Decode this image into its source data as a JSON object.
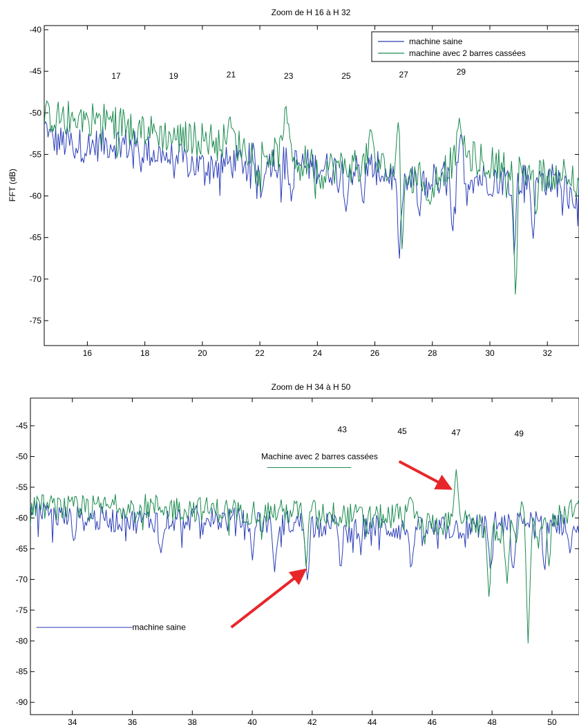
{
  "chart_data": [
    {
      "type": "line",
      "title": "Zoom de H 16 à H 32",
      "ylabel": "FFT (dB)",
      "xlabel": "",
      "xlim": [
        14.5,
        33.1
      ],
      "ylim": [
        -78,
        -39.5
      ],
      "xticks": [
        16,
        18,
        20,
        22,
        24,
        26,
        28,
        30,
        32
      ],
      "yticks": [
        -40,
        -45,
        -50,
        -55,
        -60,
        -65,
        -70,
        -75
      ],
      "legend": {
        "placement": "top-right",
        "entries": [
          "machine saine",
          "machine avec 2 barres cassées"
        ]
      },
      "harmonic_labels": [
        {
          "label": "17",
          "x": 17.0,
          "y": -45.5
        },
        {
          "label": "19",
          "x": 19.0,
          "y": -45.5
        },
        {
          "label": "21",
          "x": 21.0,
          "y": -45.3
        },
        {
          "label": "23",
          "x": 23.0,
          "y": -45.5
        },
        {
          "label": "25",
          "x": 25.0,
          "y": -45.5
        },
        {
          "label": "27",
          "x": 27.0,
          "y": -45.3
        },
        {
          "label": "29",
          "x": 29.0,
          "y": -45.0
        }
      ],
      "series": [
        {
          "name": "machine saine",
          "color": "#2b3eb8",
          "base": [
            [
              14.5,
              -53.0
            ],
            [
              15.0,
              -53.5
            ],
            [
              16.0,
              -54.0
            ],
            [
              17.0,
              -53.5
            ],
            [
              18.0,
              -54.5
            ],
            [
              19.0,
              -55.5
            ],
            [
              20.0,
              -56.5
            ],
            [
              21.0,
              -56.0
            ],
            [
              22.0,
              -55.5
            ],
            [
              23.0,
              -56.0
            ],
            [
              24.0,
              -56.5
            ],
            [
              25.0,
              -57.0
            ],
            [
              26.0,
              -56.5
            ],
            [
              27.0,
              -58.5
            ],
            [
              28.0,
              -58.0
            ],
            [
              29.0,
              -57.5
            ],
            [
              30.0,
              -58.0
            ],
            [
              31.0,
              -58.0
            ],
            [
              32.0,
              -58.0
            ],
            [
              33.1,
              -58.5
            ]
          ],
          "peaks": [
            [
              14.55,
              -51.0
            ],
            [
              29.0,
              -52.0
            ]
          ],
          "dips": [
            [
              22.05,
              -60.5
            ],
            [
              23.1,
              -61.0
            ],
            [
              25.0,
              -62.0
            ],
            [
              25.6,
              -61.5
            ],
            [
              26.85,
              -68.0
            ],
            [
              27.55,
              -63.0
            ],
            [
              28.7,
              -65.5
            ],
            [
              30.85,
              -67.5
            ],
            [
              31.5,
              -65.5
            ],
            [
              32.9,
              -61.5
            ]
          ]
        },
        {
          "name": "machine avec 2 barres cassées",
          "color": "#1a8a4e",
          "base": [
            [
              14.5,
              -50.5
            ],
            [
              15.0,
              -50.5
            ],
            [
              16.0,
              -50.5
            ],
            [
              17.0,
              -51.0
            ],
            [
              18.0,
              -52.0
            ],
            [
              19.0,
              -53.0
            ],
            [
              20.0,
              -53.0
            ],
            [
              21.0,
              -53.5
            ],
            [
              22.0,
              -55.0
            ],
            [
              23.0,
              -55.0
            ],
            [
              24.0,
              -56.5
            ],
            [
              25.0,
              -56.5
            ],
            [
              26.0,
              -56.0
            ],
            [
              27.0,
              -58.0
            ],
            [
              28.0,
              -58.0
            ],
            [
              29.0,
              -55.0
            ],
            [
              30.0,
              -56.0
            ],
            [
              31.0,
              -57.0
            ],
            [
              32.0,
              -57.5
            ],
            [
              33.1,
              -56.5
            ]
          ],
          "peaks": [
            [
              22.9,
              -48.3
            ],
            [
              26.85,
              -48.3
            ],
            [
              28.95,
              -50.3
            ],
            [
              25.85,
              -51.5
            ],
            [
              20.95,
              -50.3
            ]
          ],
          "dips": [
            [
              24.1,
              -59.5
            ],
            [
              26.95,
              -67.0
            ],
            [
              27.9,
              -61.5
            ],
            [
              30.9,
              -74.0
            ],
            [
              31.6,
              -62.5
            ],
            [
              33.0,
              -60.5
            ]
          ]
        }
      ]
    },
    {
      "type": "line",
      "title": "Zoom de H 34 à H 50",
      "ylabel": "",
      "xlabel": "",
      "xlim": [
        32.6,
        50.9
      ],
      "ylim": [
        -92,
        -40.5
      ],
      "xticks": [
        34,
        36,
        38,
        40,
        42,
        44,
        46,
        48,
        50
      ],
      "yticks": [
        -45,
        -50,
        -55,
        -60,
        -65,
        -70,
        -75,
        -80,
        -85,
        -90
      ],
      "harmonic_labels": [
        {
          "label": "43",
          "x": 43.0,
          "y": -45.5
        },
        {
          "label": "45",
          "x": 45.0,
          "y": -45.8
        },
        {
          "label": "47",
          "x": 46.8,
          "y": -46.0
        },
        {
          "label": "49",
          "x": 48.9,
          "y": -46.2
        }
      ],
      "annotations": [
        {
          "text": "Machine avec 2 barres cassées",
          "series": "green",
          "line_x": [
            40.5,
            43.3
          ],
          "y": -51.8,
          "label_x": 40.3,
          "label_y": -50.0,
          "arrow_from": [
            44.9,
            -50.8
          ],
          "arrow_to": [
            46.6,
            -55.2
          ]
        },
        {
          "text": "machine saine",
          "series": "blue",
          "line_x": [
            32.8,
            36.0
          ],
          "y": -77.8,
          "label_x": 36.0,
          "label_y": -77.8,
          "arrow_from": [
            39.3,
            -77.8
          ],
          "arrow_to": [
            41.75,
            -68.5
          ]
        }
      ],
      "series": [
        {
          "name": "machine saine",
          "color": "#2b3eb8",
          "base": [
            [
              32.6,
              -59.0
            ],
            [
              34.0,
              -60.0
            ],
            [
              36.0,
              -60.5
            ],
            [
              38.0,
              -60.0
            ],
            [
              40.0,
              -60.5
            ],
            [
              42.0,
              -61.0
            ],
            [
              44.0,
              -61.5
            ],
            [
              46.0,
              -62.0
            ],
            [
              48.0,
              -61.0
            ],
            [
              50.0,
              -60.5
            ],
            [
              50.9,
              -61.5
            ]
          ],
          "peaks": [],
          "dips": [
            [
              34.05,
              -64.0
            ],
            [
              36.95,
              -66.0
            ],
            [
              40.0,
              -67.0
            ],
            [
              40.75,
              -69.0
            ],
            [
              41.85,
              -71.0
            ],
            [
              42.95,
              -69.5
            ],
            [
              45.3,
              -69.0
            ],
            [
              47.95,
              -69.0
            ],
            [
              48.7,
              -70.0
            ],
            [
              49.75,
              -70.0
            ],
            [
              50.6,
              -66.0
            ]
          ]
        },
        {
          "name": "machine avec 2 barres cassées",
          "color": "#1a8a4e",
          "base": [
            [
              32.6,
              -58.0
            ],
            [
              34.0,
              -58.5
            ],
            [
              36.0,
              -58.0
            ],
            [
              38.0,
              -58.5
            ],
            [
              40.0,
              -59.0
            ],
            [
              42.0,
              -59.0
            ],
            [
              44.0,
              -60.0
            ],
            [
              45.0,
              -59.5
            ],
            [
              46.0,
              -61.0
            ],
            [
              47.0,
              -60.5
            ],
            [
              48.0,
              -62.0
            ],
            [
              49.0,
              -62.5
            ],
            [
              50.0,
              -60.0
            ],
            [
              50.9,
              -58.0
            ]
          ],
          "peaks": [
            [
              46.8,
              -51.8
            ],
            [
              49.0,
              -56.5
            ],
            [
              50.85,
              -57.5
            ],
            [
              45.3,
              -56.0
            ]
          ],
          "dips": [
            [
              41.8,
              -68.5
            ],
            [
              47.9,
              -73.5
            ],
            [
              48.5,
              -71.0
            ],
            [
              49.2,
              -80.5
            ],
            [
              49.9,
              -68.0
            ]
          ]
        }
      ]
    }
  ]
}
